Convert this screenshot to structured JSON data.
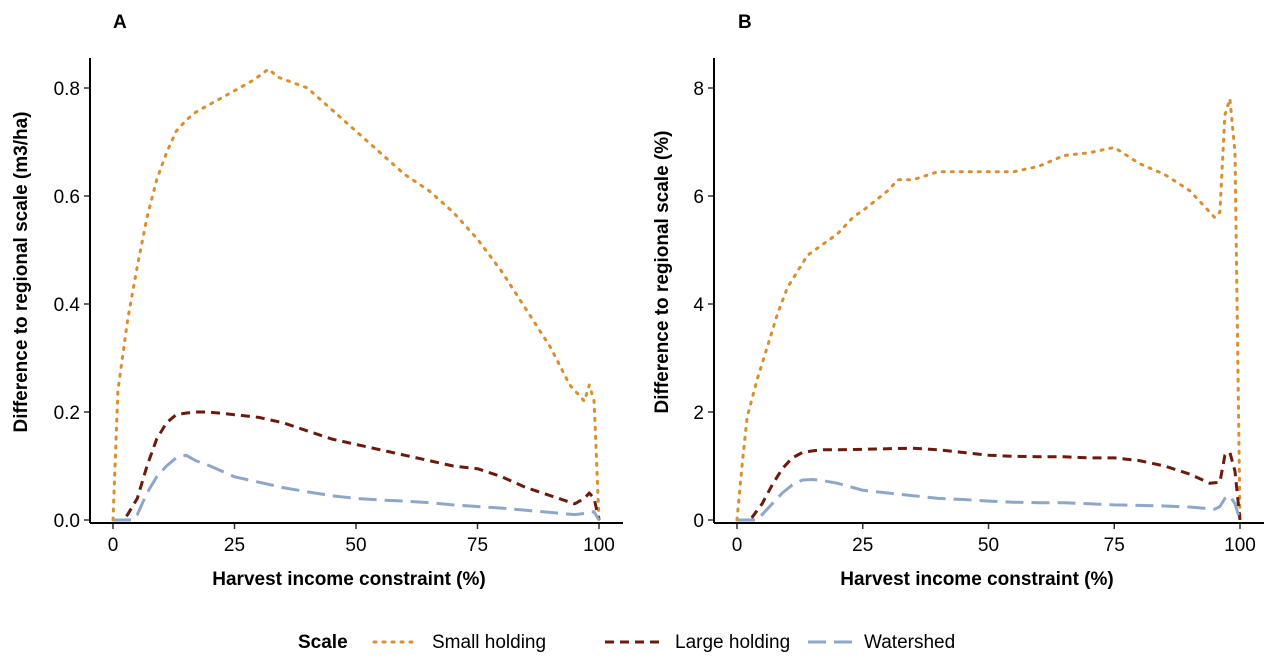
{
  "chart_data": [
    {
      "type": "line",
      "panel_label": "A",
      "xlabel": "Harvest income constraint (%)",
      "ylabel": "Difference to regional scale (m3/ha)",
      "xlim": [
        0,
        100
      ],
      "ylim": [
        0,
        0.85
      ],
      "xticks": [
        0,
        25,
        50,
        75,
        100
      ],
      "xtick_labels": [
        "0",
        "25",
        "50",
        "75",
        "100"
      ],
      "yticks": [
        0,
        0.2,
        0.4,
        0.6,
        0.8
      ],
      "ytick_labels": [
        "0.0",
        "0.2",
        "0.4",
        "0.6",
        "0.8"
      ],
      "series": [
        {
          "name": "Small holding",
          "x": [
            0,
            1,
            3,
            5,
            7,
            9,
            11,
            13,
            15,
            17,
            20,
            23,
            26,
            29,
            32,
            34,
            37,
            40,
            45,
            50,
            55,
            60,
            65,
            70,
            75,
            80,
            85,
            90,
            94,
            97,
            98,
            99,
            100
          ],
          "values": [
            0.0,
            0.24,
            0.37,
            0.47,
            0.56,
            0.63,
            0.68,
            0.72,
            0.74,
            0.755,
            0.77,
            0.785,
            0.8,
            0.815,
            0.835,
            0.82,
            0.81,
            0.8,
            0.76,
            0.72,
            0.68,
            0.64,
            0.61,
            0.57,
            0.52,
            0.46,
            0.39,
            0.32,
            0.25,
            0.22,
            0.25,
            0.22,
            0.0
          ]
        },
        {
          "name": "Large holding",
          "x": [
            0,
            2,
            3,
            5,
            7,
            9,
            11,
            13,
            15,
            17,
            19,
            22,
            25,
            30,
            35,
            40,
            45,
            50,
            55,
            60,
            65,
            70,
            75,
            80,
            85,
            90,
            95,
            97,
            98,
            99,
            100
          ],
          "values": [
            0.0,
            0.0,
            0.01,
            0.04,
            0.1,
            0.15,
            0.18,
            0.195,
            0.198,
            0.2,
            0.2,
            0.198,
            0.195,
            0.19,
            0.18,
            0.165,
            0.15,
            0.14,
            0.13,
            0.12,
            0.11,
            0.1,
            0.095,
            0.08,
            0.06,
            0.045,
            0.03,
            0.04,
            0.05,
            0.04,
            0.0
          ]
        },
        {
          "name": "Watershed",
          "x": [
            0,
            2,
            4,
            5,
            7,
            9,
            11,
            13,
            15,
            17,
            20,
            25,
            30,
            35,
            40,
            45,
            50,
            55,
            60,
            65,
            70,
            75,
            80,
            85,
            90,
            95,
            97,
            98,
            99,
            100
          ],
          "values": [
            0.0,
            0.0,
            0.0,
            0.01,
            0.05,
            0.08,
            0.1,
            0.115,
            0.12,
            0.11,
            0.1,
            0.08,
            0.07,
            0.06,
            0.052,
            0.045,
            0.04,
            0.037,
            0.035,
            0.032,
            0.028,
            0.025,
            0.022,
            0.018,
            0.014,
            0.01,
            0.012,
            0.015,
            0.015,
            0.0
          ]
        }
      ]
    },
    {
      "type": "line",
      "panel_label": "B",
      "xlabel": "Harvest income constraint (%)",
      "ylabel": "Difference to regional scale (%)",
      "xlim": [
        0,
        100
      ],
      "ylim": [
        0,
        8
      ],
      "xticks": [
        0,
        25,
        50,
        75,
        100
      ],
      "xtick_labels": [
        "0",
        "25",
        "50",
        "75",
        "100"
      ],
      "yticks": [
        0,
        2,
        4,
        6,
        8
      ],
      "ytick_labels": [
        "0",
        "2",
        "4",
        "6",
        "8"
      ],
      "series": [
        {
          "name": "Small holding",
          "x": [
            0,
            1,
            2,
            4,
            6,
            8,
            10,
            12,
            14,
            17,
            20,
            23,
            26,
            30,
            32,
            35,
            40,
            45,
            50,
            55,
            60,
            65,
            70,
            75,
            80,
            85,
            90,
            93,
            95,
            96,
            97,
            98,
            99,
            100
          ],
          "values": [
            0.0,
            1.0,
            1.9,
            2.6,
            3.2,
            3.8,
            4.3,
            4.6,
            4.9,
            5.1,
            5.3,
            5.6,
            5.8,
            6.1,
            6.3,
            6.3,
            6.45,
            6.45,
            6.45,
            6.45,
            6.55,
            6.75,
            6.8,
            6.9,
            6.6,
            6.4,
            6.1,
            5.8,
            5.6,
            5.7,
            7.5,
            7.8,
            6.8,
            0.0
          ]
        },
        {
          "name": "Large holding",
          "x": [
            0,
            2,
            3,
            5,
            7,
            9,
            11,
            13,
            15,
            17,
            20,
            25,
            30,
            35,
            40,
            45,
            50,
            55,
            60,
            65,
            70,
            75,
            80,
            85,
            90,
            94,
            96,
            97,
            98,
            99,
            100
          ],
          "values": [
            0.0,
            0.0,
            0.05,
            0.3,
            0.65,
            0.95,
            1.15,
            1.25,
            1.28,
            1.3,
            1.3,
            1.31,
            1.32,
            1.33,
            1.3,
            1.25,
            1.2,
            1.18,
            1.17,
            1.17,
            1.15,
            1.15,
            1.1,
            1.0,
            0.85,
            0.68,
            0.7,
            1.2,
            1.25,
            0.9,
            0.0
          ]
        },
        {
          "name": "Watershed",
          "x": [
            0,
            2,
            4,
            5,
            7,
            9,
            11,
            13,
            15,
            17,
            20,
            25,
            30,
            35,
            40,
            45,
            50,
            55,
            60,
            65,
            70,
            75,
            80,
            85,
            90,
            95,
            96,
            97,
            98,
            99,
            100
          ],
          "values": [
            0.0,
            0.0,
            0.0,
            0.1,
            0.3,
            0.5,
            0.65,
            0.74,
            0.75,
            0.73,
            0.68,
            0.55,
            0.5,
            0.45,
            0.4,
            0.38,
            0.35,
            0.33,
            0.32,
            0.32,
            0.3,
            0.28,
            0.27,
            0.26,
            0.24,
            0.2,
            0.25,
            0.4,
            0.45,
            0.3,
            0.0
          ]
        }
      ]
    }
  ],
  "legend": {
    "title": "Scale",
    "items": [
      "Small holding",
      "Large holding",
      "Watershed"
    ],
    "placement": "bottom"
  },
  "series_styles": [
    {
      "name": "Small holding",
      "color": "#D98E2F",
      "dash": "dotted"
    },
    {
      "name": "Large holding",
      "color": "#6B1A0E",
      "dash": "dashed"
    },
    {
      "name": "Watershed",
      "color": "#8EA7C8",
      "dash": "longdash"
    }
  ]
}
